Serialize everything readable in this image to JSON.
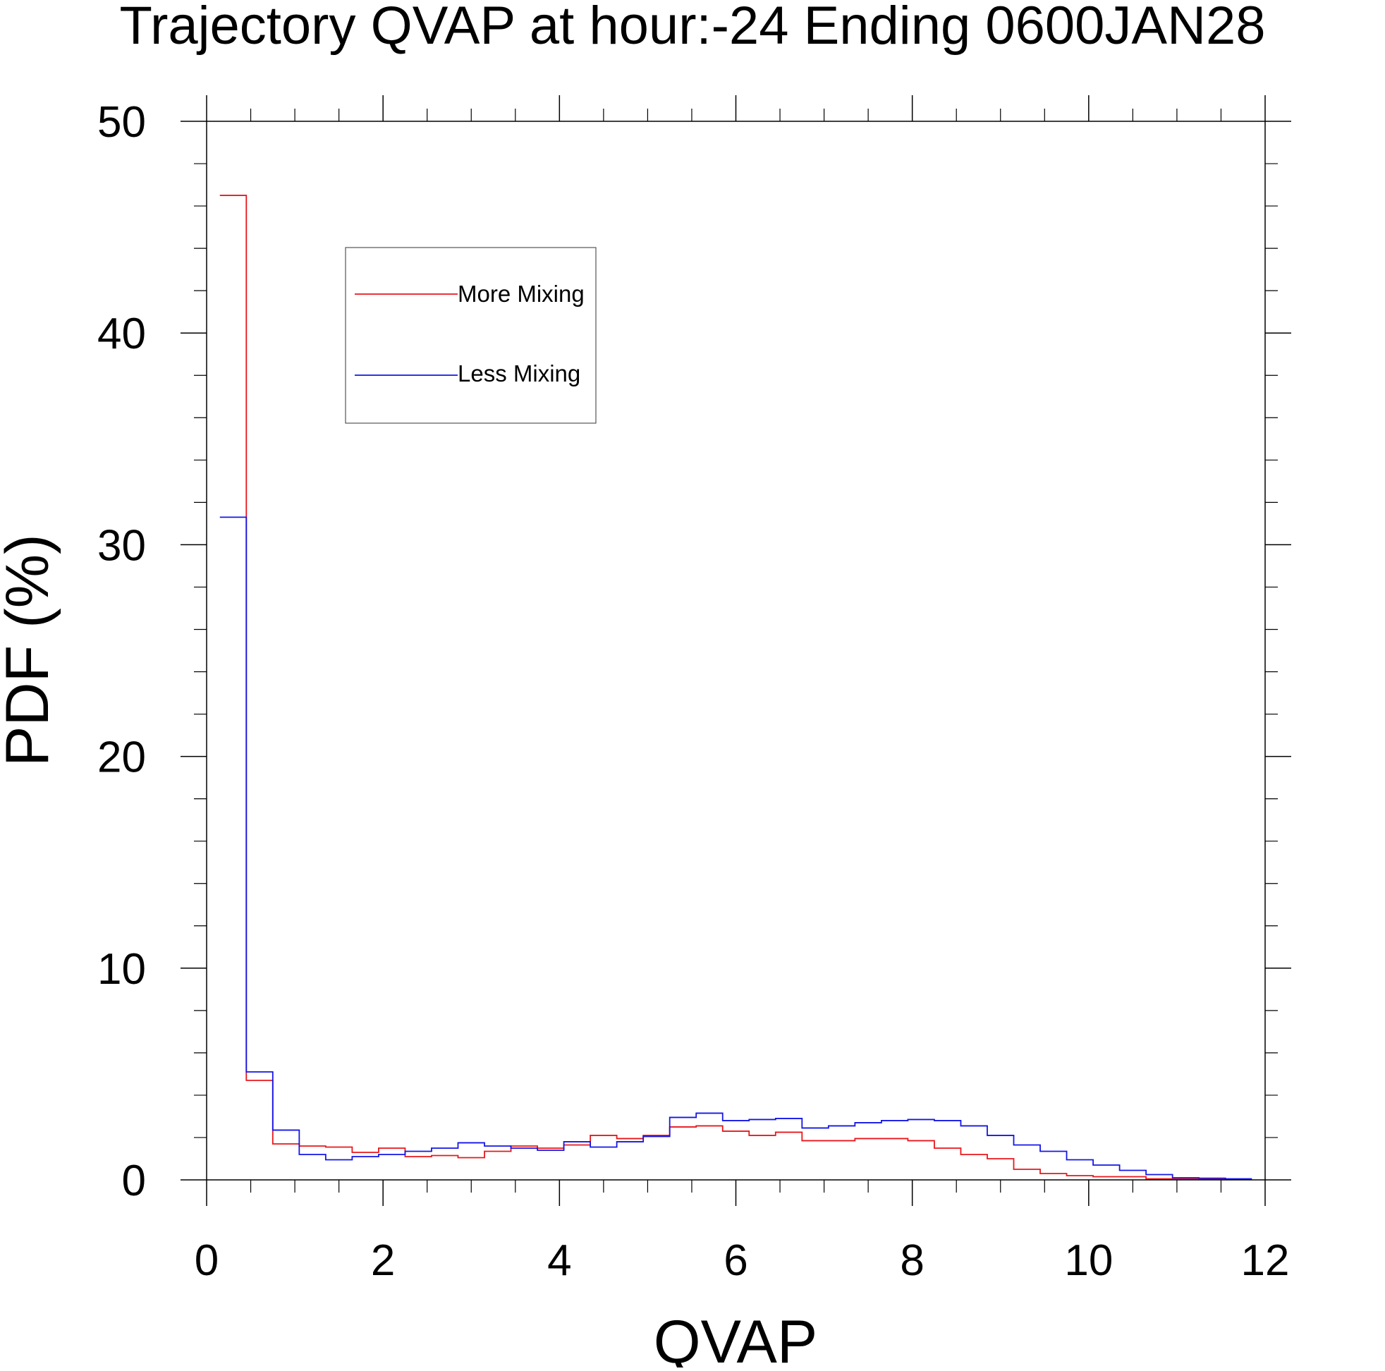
{
  "chart_data": {
    "type": "line",
    "style": "step",
    "title": "Trajectory QVAP at hour:-24 Ending 0600JAN28",
    "xlabel": "QVAP",
    "ylabel": "PDF (%)",
    "xlim": [
      0,
      12
    ],
    "ylim": [
      0,
      50
    ],
    "xticks": [
      0,
      2,
      4,
      6,
      8,
      10,
      12
    ],
    "xtick_labels": [
      "0",
      "2",
      "4",
      "6",
      "8",
      "10",
      "12"
    ],
    "yticks": [
      0,
      10,
      20,
      30,
      40,
      50
    ],
    "ytick_labels": [
      "0",
      "10",
      "20",
      "30",
      "40",
      "50"
    ],
    "x_minor_step": 0.5,
    "y_minor_step": 2,
    "grid": false,
    "legend_position": "top-left",
    "bin_edges": [
      0.15,
      0.45,
      0.75,
      1.05,
      1.35,
      1.65,
      1.95,
      2.25,
      2.55,
      2.85,
      3.15,
      3.45,
      3.75,
      4.05,
      4.35,
      4.65,
      4.95,
      5.25,
      5.55,
      5.85,
      6.15,
      6.45,
      6.75,
      7.05,
      7.35,
      7.65,
      7.95,
      8.25,
      8.55,
      8.85,
      9.15,
      9.45,
      9.75,
      10.05,
      10.35,
      10.65,
      10.95,
      11.25,
      11.55,
      11.85
    ],
    "series": [
      {
        "name": "More Mixing",
        "color": "#e8171b",
        "values": [
          46.5,
          4.7,
          1.7,
          1.6,
          1.55,
          1.3,
          1.5,
          1.1,
          1.15,
          1.05,
          1.35,
          1.6,
          1.5,
          1.65,
          2.1,
          1.95,
          2.1,
          2.5,
          2.55,
          2.3,
          2.1,
          2.25,
          1.85,
          1.85,
          1.95,
          1.95,
          1.85,
          1.5,
          1.2,
          1.0,
          0.5,
          0.3,
          0.2,
          0.15,
          0.15,
          0.05,
          0.05,
          0.03,
          0.02
        ]
      },
      {
        "name": "Less Mixing",
        "color": "#1316e6",
        "values": [
          31.3,
          5.1,
          2.35,
          1.2,
          0.95,
          1.1,
          1.2,
          1.35,
          1.5,
          1.75,
          1.6,
          1.5,
          1.4,
          1.8,
          1.55,
          1.8,
          2.05,
          2.95,
          3.15,
          2.8,
          2.85,
          2.9,
          2.45,
          2.55,
          2.7,
          2.8,
          2.85,
          2.8,
          2.55,
          2.1,
          1.65,
          1.35,
          0.95,
          0.7,
          0.45,
          0.25,
          0.1,
          0.08,
          0.05
        ]
      }
    ]
  }
}
